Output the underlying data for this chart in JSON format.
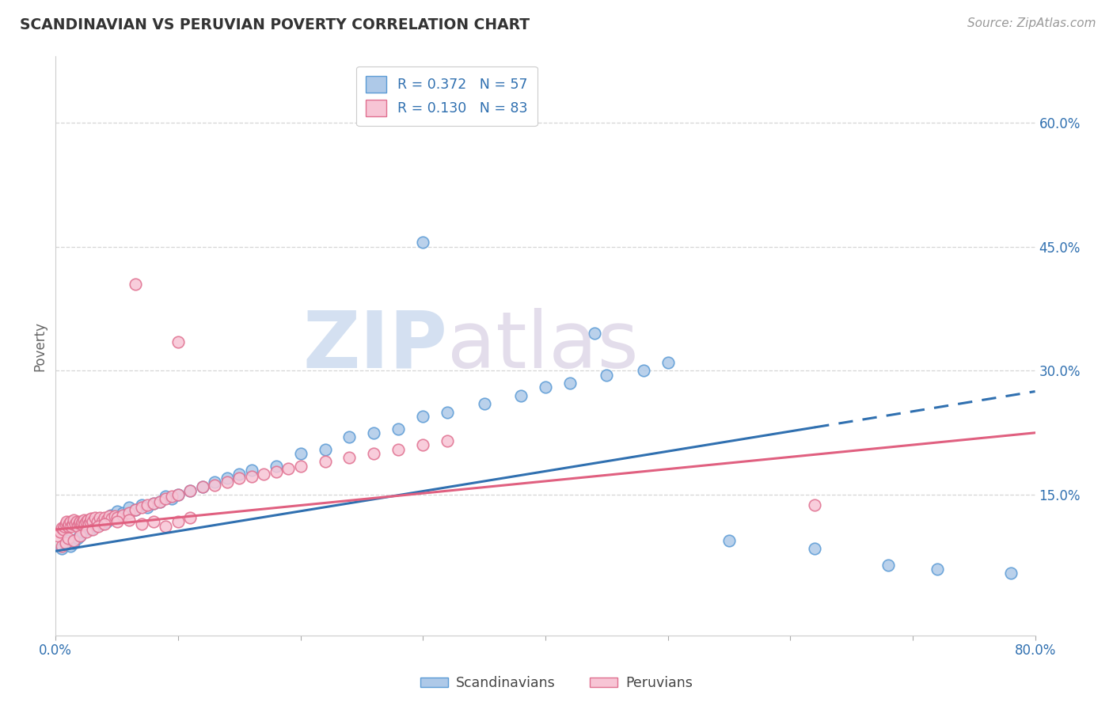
{
  "title": "SCANDINAVIAN VS PERUVIAN POVERTY CORRELATION CHART",
  "source": "Source: ZipAtlas.com",
  "ylabel": "Poverty",
  "xlim": [
    0.0,
    0.8
  ],
  "ylim": [
    -0.02,
    0.68
  ],
  "yticks": [
    0.15,
    0.3,
    0.45,
    0.6
  ],
  "ytick_labels": [
    "15.0%",
    "30.0%",
    "45.0%",
    "60.0%"
  ],
  "blue_color": "#aec9e8",
  "blue_edge": "#5b9bd5",
  "pink_color": "#f7c5d5",
  "pink_edge": "#e07090",
  "blue_line_color": "#3070b0",
  "pink_line_color": "#e06080",
  "background_color": "#ffffff",
  "grid_color": "#cccccc",
  "blue_scatter_x": [
    0.005,
    0.008,
    0.01,
    0.012,
    0.015,
    0.018,
    0.02,
    0.022,
    0.025,
    0.028,
    0.03,
    0.032,
    0.035,
    0.038,
    0.04,
    0.042,
    0.045,
    0.048,
    0.05,
    0.055,
    0.06,
    0.065,
    0.07,
    0.075,
    0.08,
    0.085,
    0.09,
    0.095,
    0.1,
    0.11,
    0.12,
    0.13,
    0.14,
    0.15,
    0.16,
    0.18,
    0.2,
    0.22,
    0.24,
    0.26,
    0.28,
    0.3,
    0.32,
    0.35,
    0.38,
    0.4,
    0.42,
    0.45,
    0.48,
    0.5,
    0.44,
    0.3,
    0.55,
    0.62,
    0.68,
    0.72,
    0.78
  ],
  "blue_scatter_y": [
    0.085,
    0.09,
    0.095,
    0.088,
    0.092,
    0.098,
    0.1,
    0.105,
    0.11,
    0.108,
    0.115,
    0.112,
    0.118,
    0.115,
    0.12,
    0.118,
    0.125,
    0.122,
    0.13,
    0.128,
    0.135,
    0.132,
    0.138,
    0.135,
    0.14,
    0.142,
    0.148,
    0.145,
    0.15,
    0.155,
    0.16,
    0.165,
    0.17,
    0.175,
    0.18,
    0.185,
    0.2,
    0.205,
    0.22,
    0.225,
    0.23,
    0.245,
    0.25,
    0.26,
    0.27,
    0.28,
    0.285,
    0.295,
    0.3,
    0.31,
    0.345,
    0.455,
    0.095,
    0.085,
    0.065,
    0.06,
    0.055
  ],
  "pink_scatter_x": [
    0.002,
    0.004,
    0.005,
    0.006,
    0.007,
    0.008,
    0.009,
    0.01,
    0.011,
    0.012,
    0.013,
    0.014,
    0.015,
    0.016,
    0.017,
    0.018,
    0.019,
    0.02,
    0.021,
    0.022,
    0.023,
    0.024,
    0.025,
    0.026,
    0.027,
    0.028,
    0.029,
    0.03,
    0.032,
    0.034,
    0.036,
    0.038,
    0.04,
    0.042,
    0.044,
    0.046,
    0.048,
    0.05,
    0.055,
    0.06,
    0.065,
    0.07,
    0.075,
    0.08,
    0.085,
    0.09,
    0.095,
    0.1,
    0.11,
    0.12,
    0.13,
    0.14,
    0.15,
    0.16,
    0.17,
    0.18,
    0.19,
    0.2,
    0.22,
    0.24,
    0.26,
    0.28,
    0.3,
    0.32,
    0.005,
    0.008,
    0.01,
    0.015,
    0.02,
    0.025,
    0.03,
    0.035,
    0.04,
    0.05,
    0.06,
    0.07,
    0.08,
    0.09,
    0.1,
    0.11,
    0.065,
    0.1,
    0.62
  ],
  "pink_scatter_y": [
    0.1,
    0.105,
    0.11,
    0.108,
    0.112,
    0.115,
    0.118,
    0.112,
    0.115,
    0.118,
    0.112,
    0.115,
    0.12,
    0.115,
    0.118,
    0.112,
    0.116,
    0.118,
    0.115,
    0.118,
    0.12,
    0.115,
    0.118,
    0.12,
    0.115,
    0.118,
    0.121,
    0.118,
    0.122,
    0.118,
    0.122,
    0.118,
    0.122,
    0.12,
    0.124,
    0.121,
    0.124,
    0.122,
    0.125,
    0.128,
    0.132,
    0.135,
    0.138,
    0.14,
    0.142,
    0.145,
    0.148,
    0.15,
    0.155,
    0.16,
    0.162,
    0.165,
    0.17,
    0.172,
    0.175,
    0.178,
    0.182,
    0.185,
    0.19,
    0.195,
    0.2,
    0.205,
    0.21,
    0.215,
    0.088,
    0.092,
    0.098,
    0.095,
    0.1,
    0.105,
    0.108,
    0.112,
    0.115,
    0.118,
    0.12,
    0.115,
    0.118,
    0.112,
    0.118,
    0.122,
    0.405,
    0.335,
    0.138
  ],
  "blue_trend_x": [
    0.0,
    0.8
  ],
  "blue_trend_y": [
    0.082,
    0.275
  ],
  "pink_trend_x": [
    0.0,
    0.8
  ],
  "pink_trend_y": [
    0.108,
    0.225
  ]
}
